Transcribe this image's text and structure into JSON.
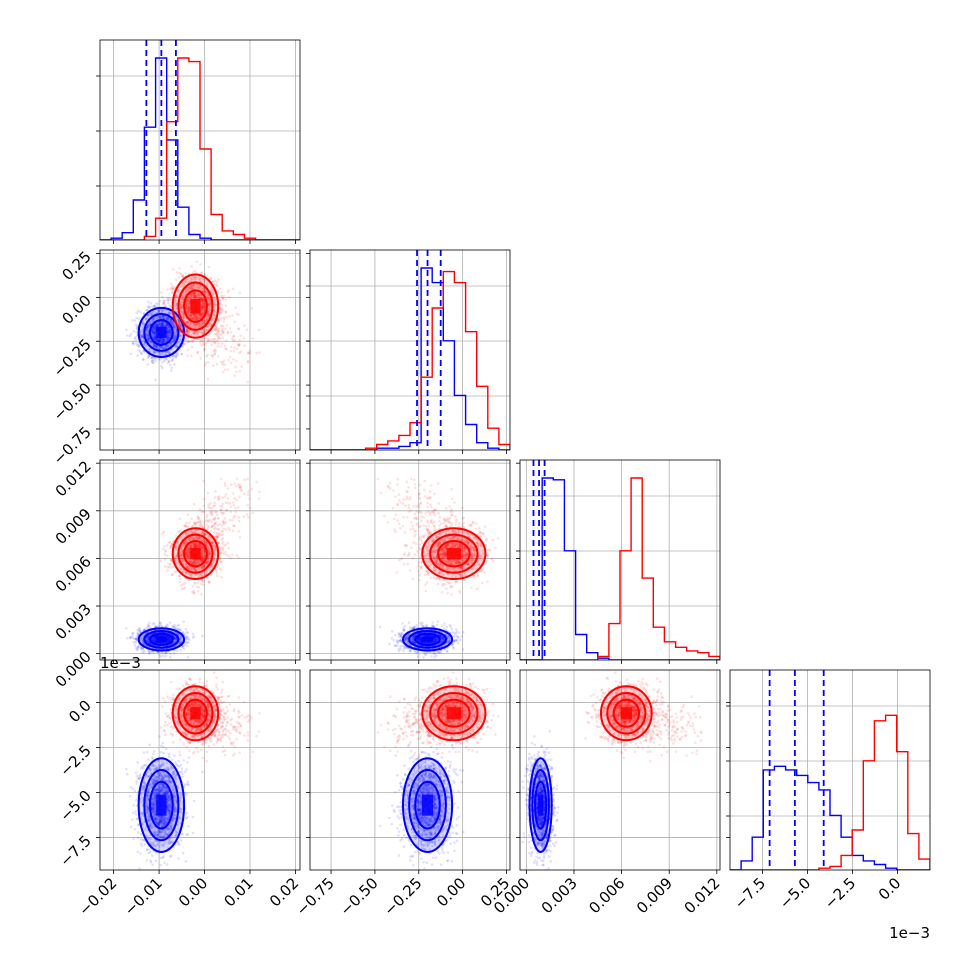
{
  "chart_data": {
    "type": "corner",
    "series": [
      {
        "name": "",
        "color": "#0000ff",
        "means": [
          -0.0095,
          -0.2,
          0.0009,
          -0.0057
        ],
        "sds": [
          0.0025,
          0.07,
          0.00035,
          0.0013
        ],
        "quantiles": [
          [
            -0.0128,
            -0.0095,
            -0.0063
          ],
          [
            -0.26,
            -0.2,
            -0.125
          ],
          [
            0.00045,
            0.0008,
            0.00115
          ],
          [
            -0.0071,
            -0.0057,
            -0.0041
          ]
        ]
      },
      {
        "name": "",
        "color": "#ff0000",
        "means": [
          -0.002,
          -0.05,
          0.0063,
          -0.0006
        ],
        "sds": [
          0.0025,
          0.09,
          0.0008,
          0.00075
        ],
        "quantiles": [],
        "tail_direction": [
          0.01,
          -0.3,
          0.004,
          -0.001
        ]
      }
    ],
    "variables": [
      {
        "xlim": [
          -0.023,
          0.021
        ],
        "ticks": [
          -0.02,
          -0.01,
          0.0,
          0.01,
          0.02
        ],
        "tick_labels": [
          "−0.02",
          "−0.01",
          "0.00",
          "0.01",
          "0.02"
        ]
      },
      {
        "xlim": [
          -0.87,
          0.27
        ],
        "ticks": [
          -0.75,
          -0.5,
          -0.25,
          0.0,
          0.25
        ],
        "tick_labels": [
          "−0.75",
          "−0.50",
          "−0.25",
          "0.00",
          "0.25"
        ]
      },
      {
        "xlim": [
          -0.0004,
          0.0122
        ],
        "ticks": [
          0.0,
          0.003,
          0.006,
          0.009,
          0.012
        ],
        "tick_labels": [
          "0.000",
          "0.003",
          "0.006",
          "0.009",
          "0.012"
        ]
      },
      {
        "xlim": [
          -0.0093,
          0.0018
        ],
        "ticks": [
          -0.0075,
          -0.005,
          -0.0025,
          0.0
        ],
        "tick_labels": [
          "−7.5",
          "−5.0",
          "−2.5",
          "0.0"
        ]
      }
    ],
    "histograms": [
      {
        "blue": [
          0,
          1,
          4,
          22,
          62,
          100,
          55,
          18,
          3,
          1,
          0,
          0,
          0,
          0,
          0,
          0,
          0,
          0
        ],
        "red": [
          0,
          0,
          0,
          0,
          2,
          12,
          65,
          100,
          98,
          50,
          14,
          5,
          3,
          1,
          0,
          0,
          0,
          0
        ]
      },
      {
        "blue": [
          0,
          0,
          0,
          0,
          0,
          0,
          1,
          1,
          2,
          4,
          100,
          92,
          60,
          30,
          14,
          4,
          1,
          0
        ],
        "red": [
          0,
          0,
          0,
          0,
          0,
          1,
          3,
          5,
          8,
          15,
          40,
          78,
          98,
          92,
          65,
          35,
          12,
          3
        ]
      },
      {
        "blue": [
          0,
          0,
          100,
          99,
          60,
          14,
          4,
          1,
          0,
          0,
          0,
          0,
          0,
          0,
          0,
          0,
          0,
          0
        ],
        "red": [
          0,
          0,
          0,
          0,
          0,
          0,
          0,
          2,
          20,
          60,
          100,
          45,
          18,
          10,
          7,
          5,
          4,
          2
        ]
      },
      {
        "blue": [
          0,
          5,
          18,
          55,
          57,
          55,
          52,
          48,
          44,
          30,
          18,
          8,
          5,
          3,
          1,
          0,
          0,
          0
        ],
        "red": [
          0,
          0,
          0,
          0,
          0,
          0,
          0,
          0,
          1,
          2,
          8,
          22,
          60,
          82,
          85,
          65,
          20,
          6
        ]
      }
    ],
    "offset_labels": {
      "row3_y": "1e−3",
      "col3_x": "1e−3"
    },
    "grid": true
  }
}
